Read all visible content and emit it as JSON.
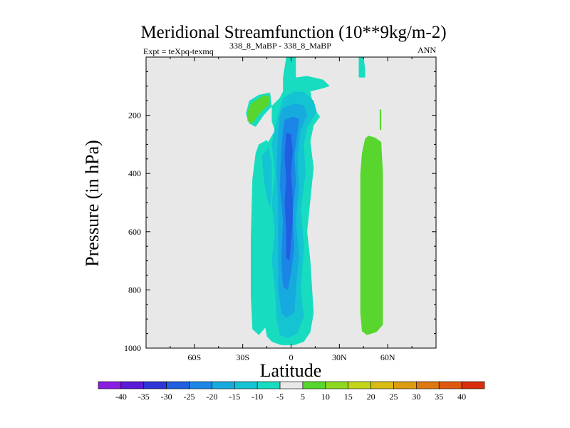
{
  "chart_data": {
    "type": "heatmap",
    "title": "Meridional Streamfunction (10**9kg/m-2)",
    "subtitle_left_prefix": "Expt = teXpq-texmq",
    "subtitle_center": "338_8_MaBP - 338_8_MaBP",
    "subtitle_right": "ANN",
    "xlabel": "Latitude",
    "ylabel": "Pressure (in hPa)",
    "xlim": [
      -90,
      90
    ],
    "ylim": [
      1000,
      0
    ],
    "x_ticks": [
      {
        "value": -60,
        "label": "60S"
      },
      {
        "value": -30,
        "label": "30S"
      },
      {
        "value": 0,
        "label": "0"
      },
      {
        "value": 30,
        "label": "30N"
      },
      {
        "value": 60,
        "label": "60N"
      }
    ],
    "y_ticks": [
      {
        "value": 200,
        "label": "200"
      },
      {
        "value": 400,
        "label": "400"
      },
      {
        "value": 600,
        "label": "600"
      },
      {
        "value": 800,
        "label": "800"
      },
      {
        "value": 1000,
        "label": "1000"
      }
    ],
    "background_color": "#e8e8e8",
    "colorbar": {
      "labels": [
        "-40",
        "-35",
        "-30",
        "-25",
        "-20",
        "-15",
        "-10",
        "-5",
        "5",
        "10",
        "15",
        "20",
        "25",
        "30",
        "35",
        "40"
      ],
      "colors": [
        "#8a1ee0",
        "#5a1ad6",
        "#2f35d8",
        "#1f5fe0",
        "#1b86e6",
        "#16aade",
        "#14c4d2",
        "#18dcc0",
        "#e8e8e8",
        "#58d62e",
        "#8ed820",
        "#c4d618",
        "#d8bc14",
        "#dc9c12",
        "#de7810",
        "#e05810",
        "#d8300e"
      ]
    },
    "contours": [
      {
        "name": "neg-5-main",
        "color_index": 7,
        "points": [
          [
            -3,
            0
          ],
          [
            3,
            0
          ],
          [
            3,
            70
          ],
          [
            10,
            65
          ],
          [
            20,
            78
          ],
          [
            24,
            100
          ],
          [
            18,
            110
          ],
          [
            12,
            118
          ],
          [
            14,
            175
          ],
          [
            18,
            205
          ],
          [
            14,
            235
          ],
          [
            12,
            290
          ],
          [
            14,
            380
          ],
          [
            10,
            600
          ],
          [
            12,
            700
          ],
          [
            14,
            880
          ],
          [
            12,
            945
          ],
          [
            8,
            978
          ],
          [
            2,
            990
          ],
          [
            -6,
            990
          ],
          [
            -12,
            978
          ],
          [
            -15,
            960
          ],
          [
            -17,
            900
          ],
          [
            -17,
            790
          ],
          [
            -16,
            680
          ],
          [
            -18,
            520
          ],
          [
            -20,
            350
          ],
          [
            -19,
            310
          ],
          [
            -14,
            290
          ],
          [
            -10,
            252
          ],
          [
            -12,
            222
          ],
          [
            -12,
            168
          ],
          [
            -7,
            140
          ],
          [
            -5,
            118
          ],
          [
            -5,
            70
          ]
        ]
      },
      {
        "name": "neg-5-left-lobe",
        "color_index": 7,
        "points": [
          [
            -20,
            300
          ],
          [
            -15,
            285
          ],
          [
            -12,
            330
          ],
          [
            -14,
            400
          ],
          [
            -12,
            500
          ],
          [
            -14,
            600
          ],
          [
            -12,
            700
          ],
          [
            -15,
            800
          ],
          [
            -14,
            880
          ],
          [
            -16,
            930
          ],
          [
            -20,
            955
          ],
          [
            -24,
            935
          ],
          [
            -25,
            820
          ],
          [
            -25,
            620
          ],
          [
            -24,
            420
          ],
          [
            -22,
            330
          ]
        ]
      },
      {
        "name": "neg-5-small-left",
        "color_index": 7,
        "points": [
          [
            -26,
            150
          ],
          [
            -20,
            130
          ],
          [
            -13,
            122
          ],
          [
            -12,
            170
          ],
          [
            -17,
            200
          ],
          [
            -22,
            240
          ],
          [
            -26,
            228
          ],
          [
            -28,
            195
          ]
        ]
      },
      {
        "name": "neg-5-top-right",
        "color_index": 7,
        "points": [
          [
            42,
            0
          ],
          [
            45,
            0
          ],
          [
            46,
            40
          ],
          [
            46,
            70
          ],
          [
            42,
            70
          ],
          [
            42,
            38
          ]
        ]
      },
      {
        "name": "neg-10",
        "color_index": 6,
        "points": [
          [
            -5,
            140
          ],
          [
            2,
            118
          ],
          [
            8,
            120
          ],
          [
            14,
            150
          ],
          [
            16,
            190
          ],
          [
            10,
            240
          ],
          [
            8,
            300
          ],
          [
            9,
            400
          ],
          [
            6,
            520
          ],
          [
            8,
            650
          ],
          [
            6,
            800
          ],
          [
            8,
            890
          ],
          [
            4,
            950
          ],
          [
            -2,
            965
          ],
          [
            -7,
            955
          ],
          [
            -9,
            900
          ],
          [
            -10,
            800
          ],
          [
            -12,
            700
          ],
          [
            -10,
            600
          ],
          [
            -12,
            500
          ],
          [
            -10,
            400
          ],
          [
            -12,
            300
          ],
          [
            -10,
            240
          ]
        ]
      },
      {
        "name": "neg-10-left",
        "color_index": 6,
        "points": [
          [
            -18,
            340
          ],
          [
            -14,
            310
          ],
          [
            -12,
            360
          ],
          [
            -12,
            450
          ],
          [
            -13,
            520
          ],
          [
            -15,
            480
          ],
          [
            -17,
            420
          ]
        ]
      },
      {
        "name": "neg-15",
        "color_index": 5,
        "points": [
          [
            -5,
            175
          ],
          [
            2,
            160
          ],
          [
            8,
            165
          ],
          [
            10,
            200
          ],
          [
            6,
            250
          ],
          [
            4,
            340
          ],
          [
            5,
            450
          ],
          [
            3,
            560
          ],
          [
            5,
            680
          ],
          [
            3,
            800
          ],
          [
            2,
            880
          ],
          [
            -3,
            895
          ],
          [
            -6,
            880
          ],
          [
            -8,
            800
          ],
          [
            -8,
            650
          ],
          [
            -8,
            500
          ],
          [
            -9,
            380
          ],
          [
            -8,
            260
          ],
          [
            -7,
            200
          ]
        ]
      },
      {
        "name": "neg-20",
        "color_index": 4,
        "points": [
          [
            -4,
            215
          ],
          [
            1,
            205
          ],
          [
            5,
            212
          ],
          [
            4,
            260
          ],
          [
            2,
            340
          ],
          [
            3,
            430
          ],
          [
            1,
            540
          ],
          [
            2,
            660
          ],
          [
            0,
            740
          ],
          [
            -2,
            800
          ],
          [
            -5,
            790
          ],
          [
            -6,
            700
          ],
          [
            -5,
            560
          ],
          [
            -7,
            440
          ],
          [
            -6,
            320
          ],
          [
            -5,
            250
          ]
        ]
      },
      {
        "name": "neg-25",
        "color_index": 3,
        "points": [
          [
            -3,
            260
          ],
          [
            0,
            265
          ],
          [
            1,
            320
          ],
          [
            0,
            400
          ],
          [
            1,
            480
          ],
          [
            1,
            560
          ],
          [
            0,
            640
          ],
          [
            -1,
            700
          ],
          [
            -3,
            690
          ],
          [
            -3,
            600
          ],
          [
            -4,
            500
          ],
          [
            -3,
            420
          ],
          [
            -4,
            340
          ]
        ]
      },
      {
        "name": "pos-5-right",
        "color_index": 9,
        "points": [
          [
            46,
            280
          ],
          [
            48,
            270
          ],
          [
            52,
            276
          ],
          [
            56,
            292
          ],
          [
            57,
            400
          ],
          [
            57,
            600
          ],
          [
            57,
            850
          ],
          [
            57,
            920
          ],
          [
            53,
            945
          ],
          [
            47,
            955
          ],
          [
            44,
            942
          ],
          [
            43,
            880
          ],
          [
            43,
            600
          ],
          [
            43,
            400
          ],
          [
            44,
            330
          ]
        ]
      },
      {
        "name": "pos-5-left-blob",
        "color_index": 9,
        "points": [
          [
            -25,
            160
          ],
          [
            -20,
            142
          ],
          [
            -16,
            130
          ],
          [
            -13,
            138
          ],
          [
            -14,
            165
          ],
          [
            -19,
            190
          ],
          [
            -24,
            228
          ],
          [
            -27,
            220
          ],
          [
            -27,
            190
          ]
        ]
      },
      {
        "name": "pos-5-streak",
        "color_index": 9,
        "points": [
          [
            55,
            180
          ],
          [
            56,
            180
          ],
          [
            56,
            250
          ],
          [
            55,
            250
          ]
        ]
      }
    ]
  }
}
